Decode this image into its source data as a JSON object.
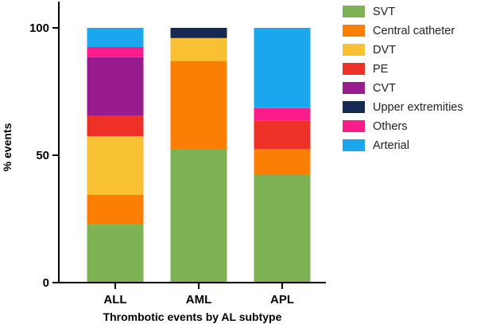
{
  "chart_data": {
    "type": "bar",
    "stacked": true,
    "categories": [
      "ALL",
      "AML",
      "APL"
    ],
    "series": [
      {
        "name": "SVT",
        "color": "#7db354",
        "values": [
          23,
          52.5,
          42.5
        ]
      },
      {
        "name": "Central catheter",
        "color": "#fb7f05",
        "values": [
          11.5,
          34.5,
          10
        ]
      },
      {
        "name": "DVT",
        "color": "#f8c033",
        "values": [
          23,
          9,
          0
        ]
      },
      {
        "name": "PE",
        "color": "#ee3126",
        "values": [
          8,
          0,
          11
        ]
      },
      {
        "name": "CVT",
        "color": "#981b8f",
        "values": [
          23,
          0,
          0
        ]
      },
      {
        "name": "Upper extremities",
        "color": "#142a52",
        "values": [
          0,
          4,
          0
        ]
      },
      {
        "name": "Others",
        "color": "#fb1c8a",
        "values": [
          4,
          0,
          5
        ]
      },
      {
        "name": "Arterial",
        "color": "#1ba7ee",
        "values": [
          7.5,
          0,
          31.5
        ]
      }
    ],
    "yticks": [
      0,
      50,
      100
    ],
    "ylim": [
      0,
      112
    ],
    "xlabel": "Thrombotic events by AL subtype",
    "ylabel": "% events",
    "legend_position": "right",
    "grid": false
  }
}
